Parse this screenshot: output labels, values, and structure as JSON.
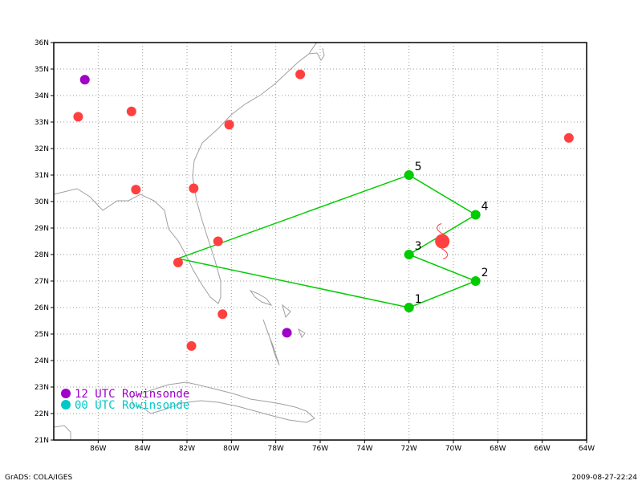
{
  "map": {
    "lon_range": [
      -88,
      -64
    ],
    "lat_range": [
      21,
      36
    ],
    "lon_ticks": [
      {
        "value": -86,
        "label": "86W"
      },
      {
        "value": -84,
        "label": "84W"
      },
      {
        "value": -82,
        "label": "82W"
      },
      {
        "value": -80,
        "label": "80W"
      },
      {
        "value": -78,
        "label": "78W"
      },
      {
        "value": -76,
        "label": "76W"
      },
      {
        "value": -74,
        "label": "74W"
      },
      {
        "value": -72,
        "label": "72W"
      },
      {
        "value": -70,
        "label": "70W"
      },
      {
        "value": -68,
        "label": "68W"
      },
      {
        "value": -66,
        "label": "66W"
      },
      {
        "value": -64,
        "label": "64W"
      }
    ],
    "lat_ticks": [
      {
        "value": 21,
        "label": "21N"
      },
      {
        "value": 22,
        "label": "22N"
      },
      {
        "value": 23,
        "label": "23N"
      },
      {
        "value": 24,
        "label": "24N"
      },
      {
        "value": 25,
        "label": "25N"
      },
      {
        "value": 26,
        "label": "26N"
      },
      {
        "value": 27,
        "label": "27N"
      },
      {
        "value": 28,
        "label": "28N"
      },
      {
        "value": 29,
        "label": "29N"
      },
      {
        "value": 30,
        "label": "30N"
      },
      {
        "value": 31,
        "label": "31N"
      },
      {
        "value": 32,
        "label": "32N"
      },
      {
        "value": 33,
        "label": "33N"
      },
      {
        "value": 34,
        "label": "34N"
      },
      {
        "value": 35,
        "label": "35N"
      },
      {
        "value": 36,
        "label": "36N"
      }
    ],
    "grid": true
  },
  "colors": {
    "red_station": "#ff4040",
    "purple_station": "#a000c8",
    "cyan_station": "#00c8c8",
    "flight_track": "#00cc00",
    "coastline": "#a0a0a0",
    "grid": "#999999",
    "storm_symbol": "#ff4040"
  },
  "stations_red": [
    {
      "lon": -86.9,
      "lat": 33.2
    },
    {
      "lon": -84.5,
      "lat": 33.4
    },
    {
      "lon": -80.1,
      "lat": 32.9
    },
    {
      "lon": -76.9,
      "lat": 34.8
    },
    {
      "lon": -84.3,
      "lat": 30.45
    },
    {
      "lon": -81.7,
      "lat": 30.5
    },
    {
      "lon": -80.6,
      "lat": 28.5
    },
    {
      "lon": -82.4,
      "lat": 27.7
    },
    {
      "lon": -80.4,
      "lat": 25.75
    },
    {
      "lon": -81.8,
      "lat": 24.55
    },
    {
      "lon": -64.8,
      "lat": 32.4
    }
  ],
  "stations_purple": [
    {
      "lon": -86.6,
      "lat": 34.6
    },
    {
      "lon": -77.5,
      "lat": 25.05
    }
  ],
  "flight_track": {
    "path": [
      {
        "lon": -82.4,
        "lat": 27.85
      },
      {
        "lon": -72.0,
        "lat": 26.0
      },
      {
        "lon": -69.0,
        "lat": 27.0
      },
      {
        "lon": -72.0,
        "lat": 28.0
      },
      {
        "lon": -69.0,
        "lat": 29.5
      },
      {
        "lon": -72.0,
        "lat": 31.0
      },
      {
        "lon": -82.4,
        "lat": 27.85
      }
    ],
    "waypoints": [
      {
        "label": "1",
        "lon": -72.0,
        "lat": 26.0
      },
      {
        "label": "2",
        "lon": -69.0,
        "lat": 27.0
      },
      {
        "label": "3",
        "lon": -72.0,
        "lat": 28.0
      },
      {
        "label": "4",
        "lon": -69.0,
        "lat": 29.5
      },
      {
        "label": "5",
        "lon": -72.0,
        "lat": 31.0
      }
    ]
  },
  "storm": {
    "lon": -70.5,
    "lat": 28.5
  },
  "legend": [
    {
      "label": "12 UTC Rowinsonde",
      "color": "#a000c8"
    },
    {
      "label": "00 UTC Rowinsonde",
      "color": "#00c8c8"
    }
  ],
  "footer": {
    "left": "GrADS: COLA/IGES",
    "right": "2009-08-27-22:24"
  }
}
